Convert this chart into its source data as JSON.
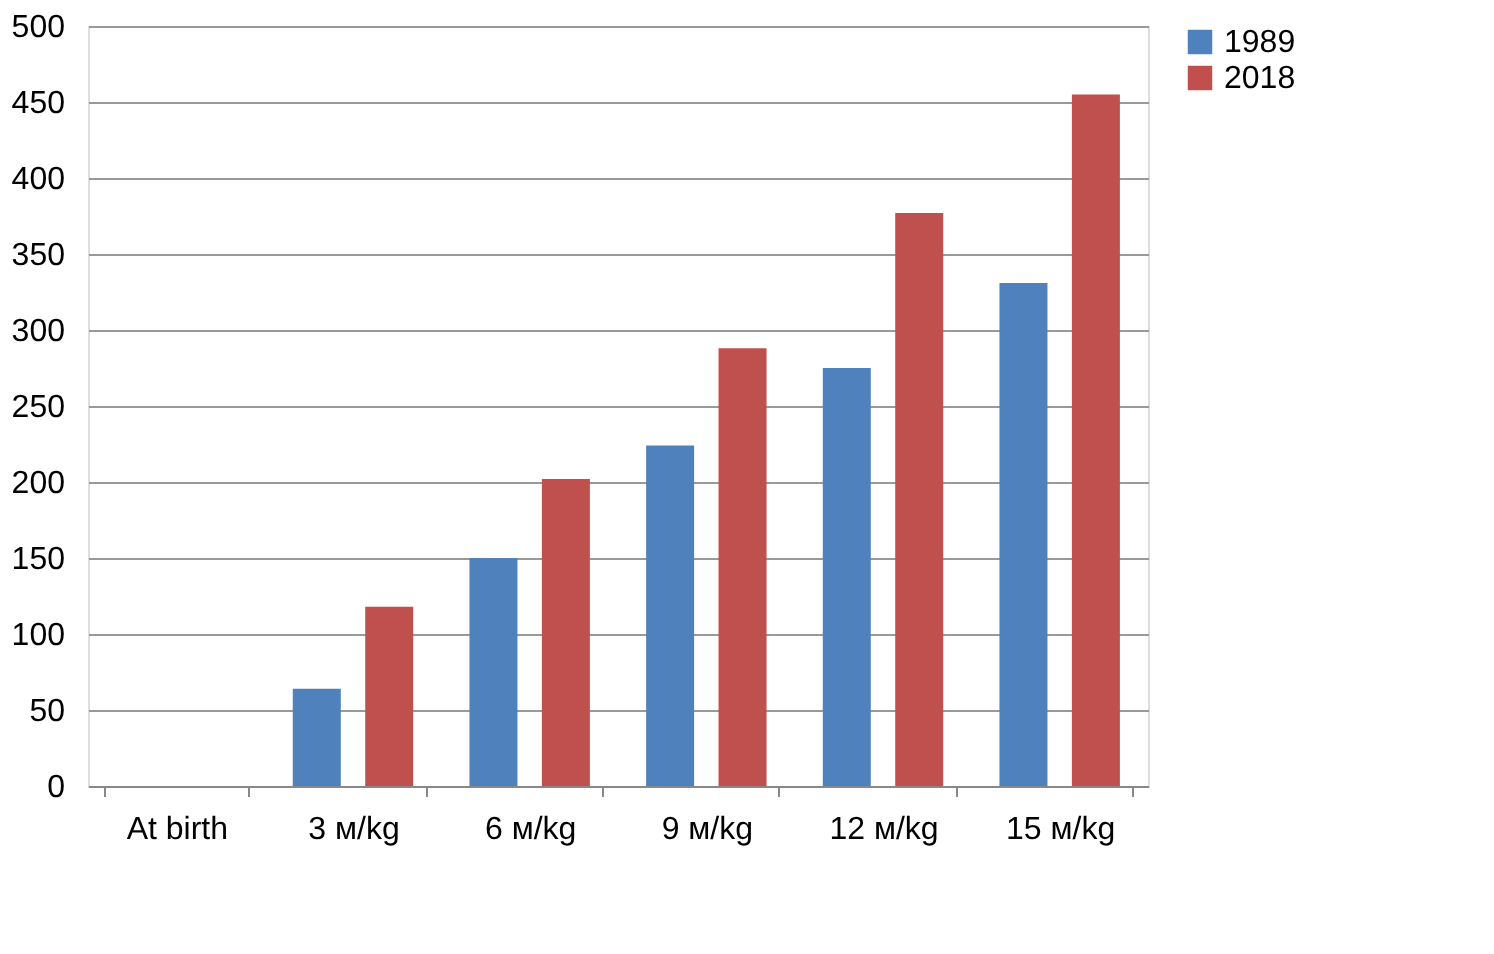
{
  "chart_data": {
    "type": "bar",
    "categories": [
      "At birth",
      "3 м/kg",
      "6 м/kg",
      "9 м/kg",
      "12 м/kg",
      "15 м/kg"
    ],
    "series": [
      {
        "name": "1989",
        "color": "#4f81bd",
        "values": [
          null,
          64,
          150,
          224,
          275,
          331
        ]
      },
      {
        "name": "2018",
        "color": "#c0504d",
        "values": [
          null,
          118,
          202,
          288,
          377,
          455
        ]
      }
    ],
    "ylim": [
      0,
      500
    ],
    "yticks": [
      0,
      50,
      100,
      150,
      200,
      250,
      300,
      350,
      400,
      450,
      500
    ],
    "grid": "y",
    "legend": "right"
  }
}
